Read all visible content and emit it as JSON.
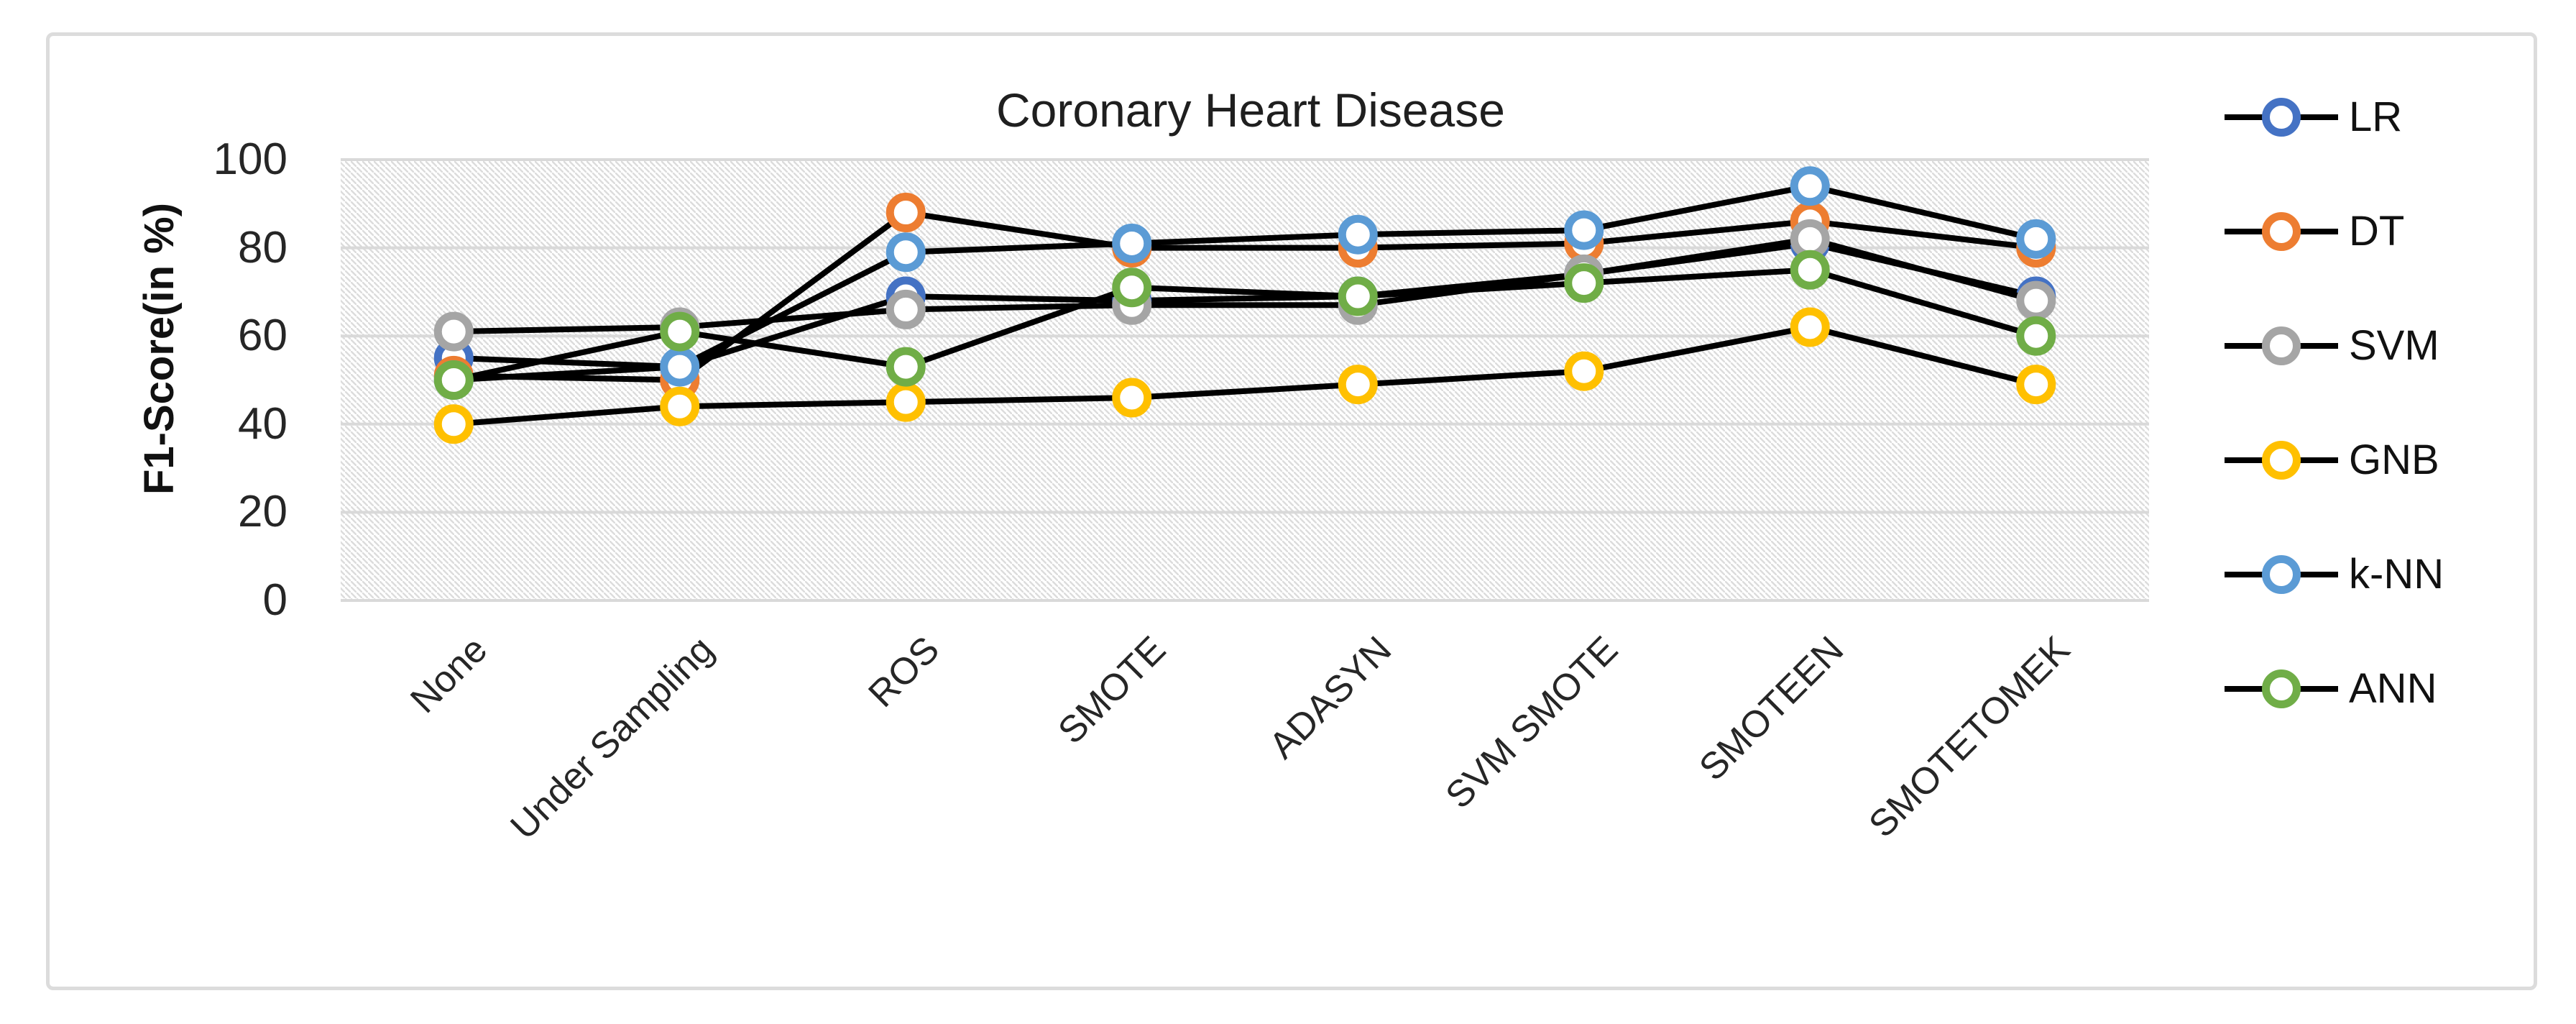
{
  "figure": {
    "title": "Coronary Heart Disease"
  },
  "chart_data": {
    "type": "line",
    "title": "Coronary Heart Disease",
    "xlabel": "",
    "ylabel": "F1-Score(in %)",
    "ylim": [
      0,
      100
    ],
    "y_ticks": [
      100,
      80,
      60,
      40,
      20,
      0
    ],
    "grid": true,
    "plot_background": "diagonal-hatch",
    "legend_position": "right",
    "marker": "open-circle",
    "line_color": "#000000",
    "categories": [
      "None",
      "Under Sampling",
      "ROS",
      "SMOTE",
      "ADASYN",
      "SVM SMOTE",
      "SMOTEEN",
      "SMOTETOMEK"
    ],
    "series": [
      {
        "name": "LR",
        "color": "#4472C4",
        "values": [
          55,
          53,
          69,
          68,
          69,
          74,
          81,
          69
        ]
      },
      {
        "name": "DT",
        "color": "#ED7D31",
        "values": [
          51,
          50,
          88,
          80,
          80,
          81,
          86,
          80
        ]
      },
      {
        "name": "SVM",
        "color": "#A5A5A5",
        "values": [
          61,
          62,
          66,
          67,
          67,
          74,
          82,
          68
        ]
      },
      {
        "name": "GNB",
        "color": "#FFC000",
        "values": [
          40,
          44,
          45,
          46,
          49,
          52,
          62,
          49
        ]
      },
      {
        "name": "k-NN",
        "color": "#5B9BD5",
        "values": [
          50,
          53,
          79,
          81,
          83,
          84,
          94,
          82
        ]
      },
      {
        "name": "ANN",
        "color": "#70AD47",
        "values": [
          50,
          61,
          53,
          71,
          69,
          72,
          75,
          60
        ]
      }
    ]
  },
  "style_colors": {
    "gridline": "#d9d9d9",
    "hatch": "#dcdcdc",
    "frame_border": "#dcdcdc",
    "text": "#262626"
  }
}
